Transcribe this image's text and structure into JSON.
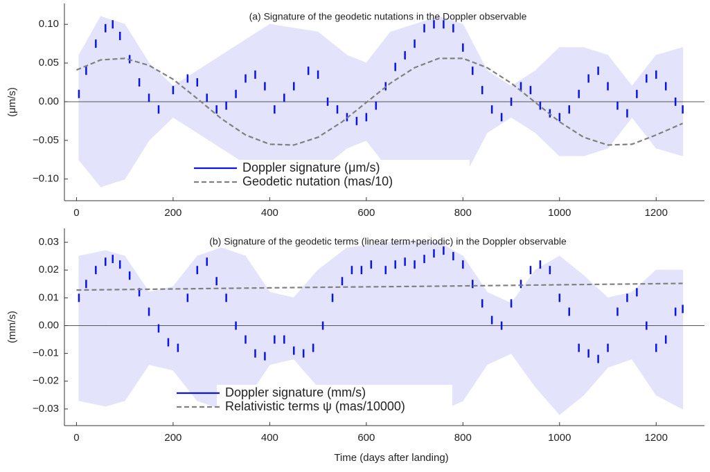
{
  "chart_data": [
    {
      "type": "scatter",
      "title": "(a) Signature of the geodetic nutations in the Doppler observable",
      "y_label": "(μm/s)",
      "xlim": [
        -25,
        1300
      ],
      "xticks": [
        0,
        200,
        400,
        600,
        800,
        1000,
        1200
      ],
      "ylim": [
        -0.128,
        0.127
      ],
      "yticks": [
        {
          "value": -0.1,
          "label": "−0.10"
        },
        {
          "value": -0.05,
          "label": "−0.05"
        },
        {
          "value": 0,
          "label": "0.00"
        },
        {
          "value": 0.05,
          "label": "0.05"
        },
        {
          "value": 0.1,
          "label": "0.10"
        }
      ],
      "band": {
        "color": "#e3e3fb",
        "x": [
          5,
          50,
          100,
          150,
          200,
          250,
          300,
          400,
          500,
          560,
          600,
          650,
          750,
          800,
          850,
          900,
          950,
          1000,
          1050,
          1100,
          1150,
          1200,
          1255
        ],
        "upper": [
          0.06,
          0.11,
          0.1,
          0.05,
          0.02,
          0.04,
          0.06,
          0.1,
          0.09,
          0.06,
          0.05,
          0.09,
          0.11,
          0.1,
          0.04,
          0.02,
          0.04,
          0.07,
          0.07,
          0.06,
          0.02,
          0.06,
          0.07
        ],
        "lower": [
          -0.075,
          -0.11,
          -0.1,
          -0.05,
          -0.02,
          -0.04,
          -0.06,
          -0.1,
          -0.09,
          -0.06,
          -0.05,
          -0.09,
          -0.11,
          -0.1,
          -0.04,
          -0.02,
          -0.04,
          -0.07,
          -0.07,
          -0.06,
          -0.02,
          -0.06,
          -0.07
        ]
      },
      "series": [
        {
          "name": "Doppler signature (μm/s)",
          "color": "#0a14e6",
          "x": [
            5,
            20,
            40,
            60,
            75,
            90,
            110,
            130,
            150,
            170,
            200,
            230,
            250,
            270,
            290,
            310,
            330,
            350,
            370,
            390,
            410,
            430,
            450,
            480,
            500,
            520,
            540,
            560,
            580,
            600,
            620,
            640,
            660,
            680,
            700,
            720,
            740,
            760,
            780,
            800,
            820,
            840,
            860,
            880,
            900,
            920,
            940,
            960,
            980,
            1000,
            1020,
            1040,
            1060,
            1080,
            1100,
            1120,
            1140,
            1160,
            1180,
            1200,
            1220,
            1240,
            1255
          ],
          "values": [
            0.01,
            0.04,
            0.075,
            0.095,
            0.1,
            0.085,
            0.055,
            0.025,
            0.005,
            -0.01,
            0.015,
            0.03,
            0.025,
            0.005,
            -0.01,
            -0.005,
            0.01,
            0.03,
            0.035,
            0.02,
            -0.01,
            0.005,
            0.02,
            0.04,
            0.035,
            0,
            -0.01,
            -0.02,
            -0.025,
            -0.02,
            -0.005,
            0.02,
            0.045,
            0.06,
            0.075,
            0.095,
            0.1,
            0.1,
            0.095,
            0.07,
            0.04,
            0.015,
            -0.01,
            -0.02,
            0,
            0.02,
            0.015,
            -0.005,
            -0.015,
            -0.02,
            -0.01,
            0.01,
            0.03,
            0.04,
            0.02,
            -0.005,
            -0.015,
            0.01,
            0.03,
            0.035,
            0.02,
            0,
            -0.01
          ]
        },
        {
          "name": "Geodetic nutation (mas/10)",
          "color": "#808080",
          "dash": true,
          "x": [
            0,
            50,
            100,
            150,
            200,
            250,
            300,
            350,
            400,
            450,
            500,
            550,
            600,
            650,
            700,
            750,
            800,
            850,
            900,
            950,
            1000,
            1050,
            1100,
            1150,
            1200,
            1255
          ],
          "values": [
            0.041,
            0.054,
            0.056,
            0.047,
            0.029,
            0.004,
            -0.022,
            -0.043,
            -0.055,
            -0.056,
            -0.046,
            -0.026,
            -0.001,
            0.024,
            0.044,
            0.056,
            0.056,
            0.044,
            0.024,
            -0.001,
            -0.026,
            -0.046,
            -0.056,
            -0.055,
            -0.043,
            -0.028
          ]
        }
      ]
    },
    {
      "type": "scatter",
      "title": "(b) Signature of the geodetic terms (linear term+periodic) in the Doppler observable",
      "y_label": "(mm/s)",
      "x_label": "Time (days after landing)",
      "xlim": [
        -25,
        1300
      ],
      "xticks": [
        0,
        200,
        400,
        600,
        800,
        1000,
        1200
      ],
      "ylim": [
        -0.036,
        0.035
      ],
      "yticks": [
        {
          "value": -0.03,
          "label": "−0.03"
        },
        {
          "value": -0.02,
          "label": "−0.02"
        },
        {
          "value": -0.01,
          "label": "−0.01"
        },
        {
          "value": 0,
          "label": "0.00"
        },
        {
          "value": 0.01,
          "label": "0.01"
        },
        {
          "value": 0.02,
          "label": "0.02"
        },
        {
          "value": 0.03,
          "label": "0.03"
        }
      ],
      "band": {
        "color": "#e3e3fb",
        "x": [
          5,
          60,
          100,
          150,
          200,
          250,
          300,
          350,
          400,
          450,
          500,
          560,
          650,
          750,
          800,
          850,
          900,
          950,
          1000,
          1050,
          1100,
          1150,
          1200,
          1255
        ],
        "upper": [
          0.025,
          0.027,
          0.025,
          0.012,
          0.014,
          0.025,
          0.028,
          0.025,
          0.012,
          0.01,
          0.02,
          0.028,
          0.03,
          0.03,
          0.025,
          0.012,
          0.008,
          0.02,
          0.025,
          0.018,
          0.01,
          0.012,
          0.02,
          0.02
        ],
        "lower": [
          -0.027,
          -0.029,
          -0.027,
          -0.014,
          -0.016,
          -0.027,
          -0.03,
          -0.027,
          -0.014,
          -0.012,
          -0.022,
          -0.03,
          -0.031,
          -0.031,
          -0.027,
          -0.014,
          -0.01,
          -0.022,
          -0.032,
          -0.025,
          -0.015,
          -0.012,
          -0.025,
          -0.03
        ]
      },
      "series": [
        {
          "name": "Doppler signature (mm/s)",
          "color": "#0a14e6",
          "x": [
            5,
            20,
            40,
            60,
            75,
            90,
            110,
            130,
            150,
            170,
            190,
            210,
            230,
            250,
            270,
            290,
            310,
            330,
            350,
            370,
            390,
            410,
            430,
            450,
            470,
            490,
            510,
            530,
            550,
            570,
            590,
            610,
            640,
            660,
            680,
            700,
            720,
            740,
            760,
            780,
            800,
            820,
            840,
            860,
            880,
            900,
            920,
            940,
            960,
            980,
            1000,
            1020,
            1040,
            1060,
            1080,
            1100,
            1120,
            1140,
            1160,
            1180,
            1200,
            1220,
            1240,
            1255
          ],
          "values": [
            0.01,
            0.015,
            0.02,
            0.023,
            0.024,
            0.022,
            0.018,
            0.012,
            0.005,
            -0.001,
            -0.006,
            -0.008,
            0.01,
            0.02,
            0.023,
            0.016,
            0.01,
            0,
            -0.005,
            -0.01,
            -0.011,
            -0.005,
            -0.005,
            -0.009,
            -0.01,
            -0.008,
            0,
            0.01,
            0.016,
            0.02,
            0.02,
            0.022,
            0.02,
            0.022,
            0.023,
            0.022,
            0.024,
            0.026,
            0.027,
            0.025,
            0.022,
            0.015,
            0.008,
            0.002,
            0,
            0.008,
            0.015,
            0.02,
            0.022,
            0.02,
            0.01,
            0.005,
            -0.008,
            -0.01,
            -0.012,
            -0.008,
            0.005,
            0.01,
            0.012,
            0,
            -0.008,
            -0.005,
            0.005,
            0.006
          ]
        },
        {
          "name": "Relativistic terms ψ (mas/10000)",
          "color": "#808080",
          "dash": true,
          "x": [
            0,
            250,
            500,
            750,
            1000,
            1255
          ],
          "values": [
            0.0128,
            0.0133,
            0.0138,
            0.0142,
            0.0147,
            0.0152
          ]
        }
      ]
    }
  ]
}
